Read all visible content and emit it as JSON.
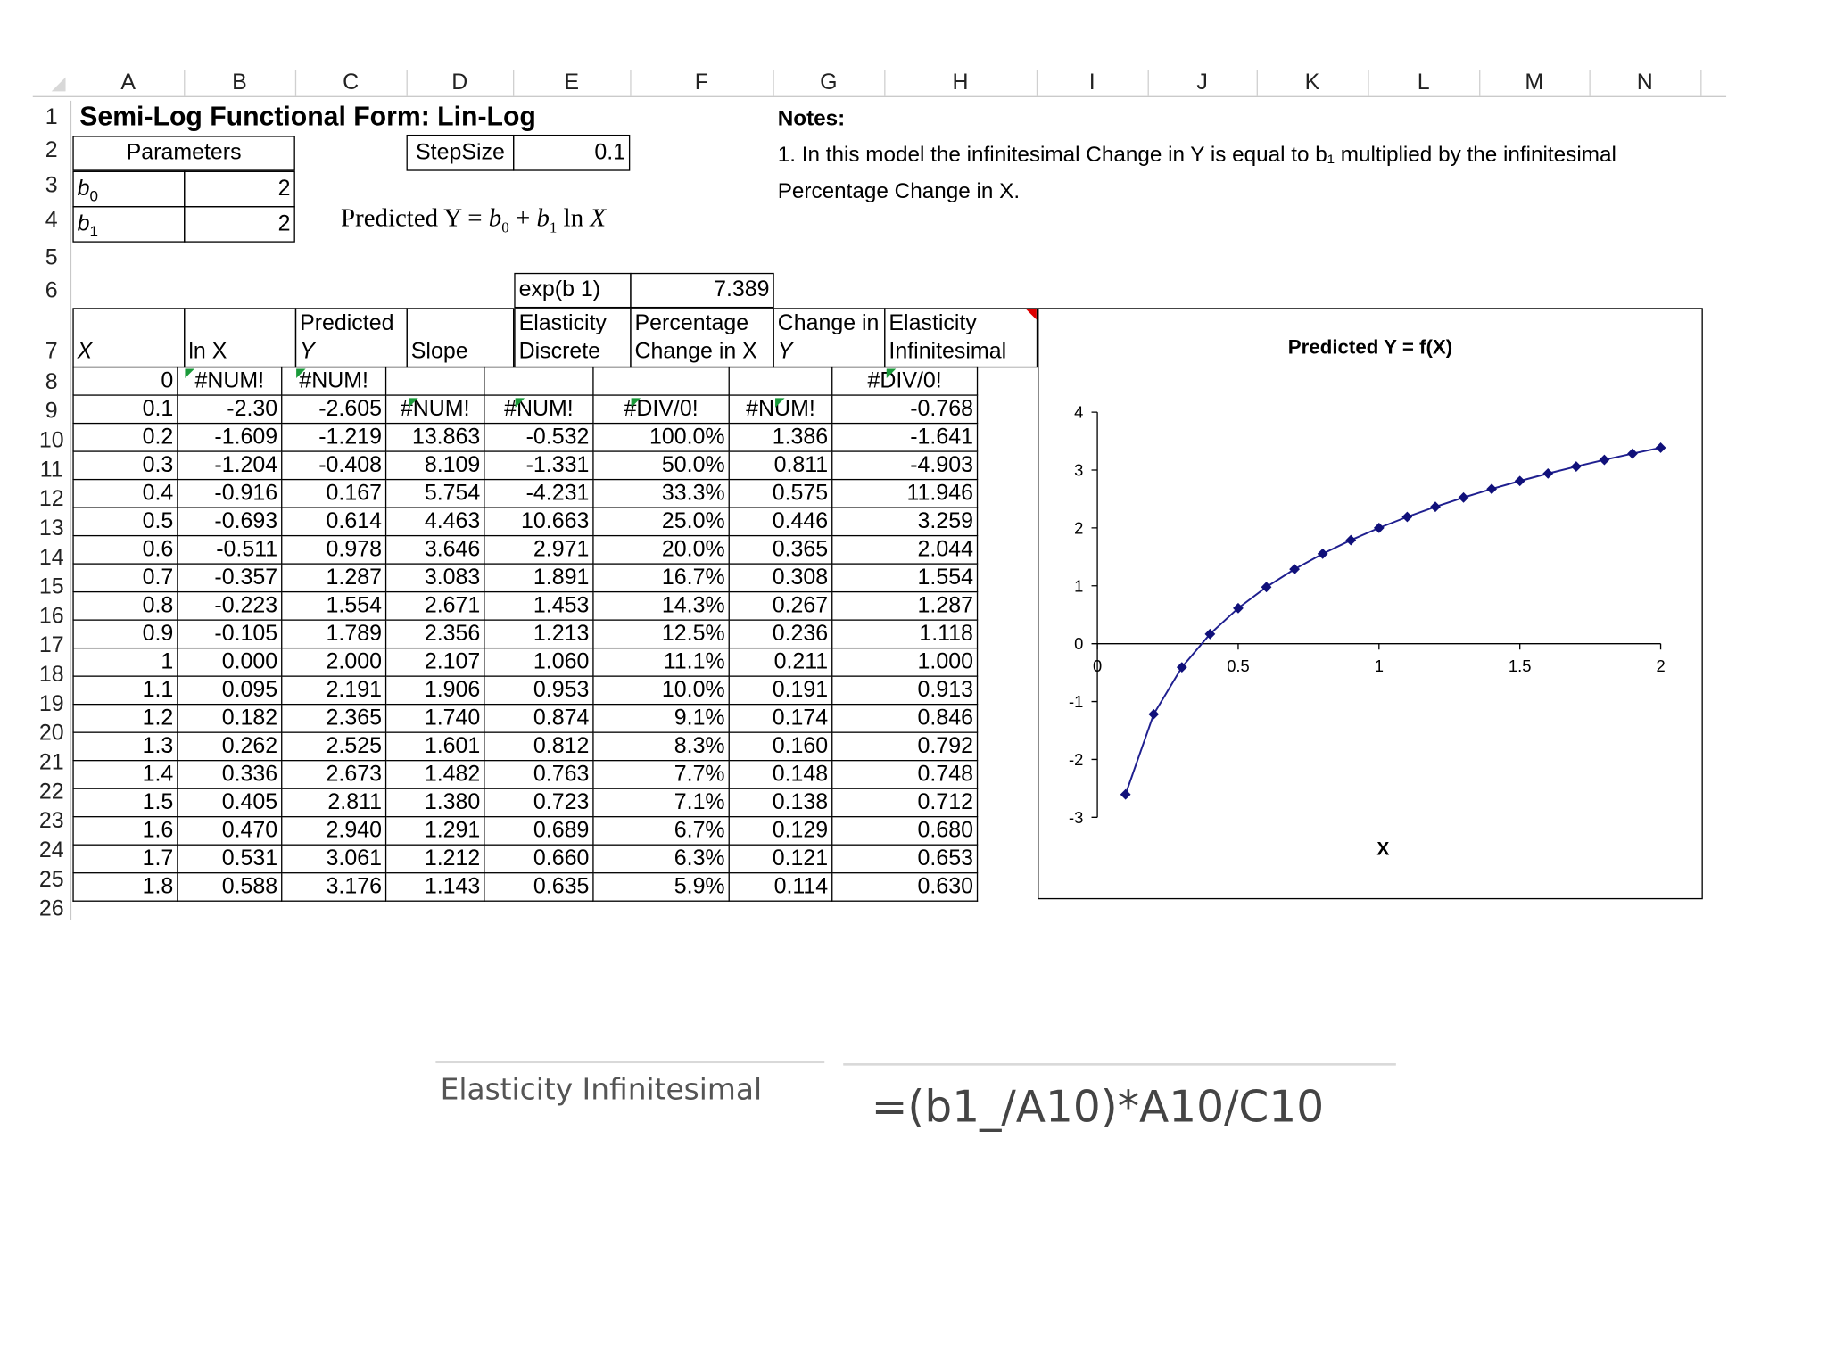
{
  "columns": [
    "A",
    "B",
    "C",
    "D",
    "E",
    "F",
    "G",
    "H",
    "I",
    "J",
    "K",
    "L",
    "M",
    "N"
  ],
  "rows": [
    "1",
    "2",
    "3",
    "4",
    "5",
    "6",
    "7",
    "8",
    "9",
    "10",
    "11",
    "12",
    "13",
    "14",
    "15",
    "16",
    "17",
    "18",
    "19",
    "20",
    "21",
    "22",
    "23",
    "24",
    "25",
    "26"
  ],
  "title": "Semi-Log Functional Form: Lin-Log",
  "parameters": {
    "label": "Parameters",
    "b0_label": "b",
    "b0_sub": "0",
    "b0_value": "2",
    "b1_label": "b",
    "b1_sub": "1",
    "b1_value": "2"
  },
  "stepsize": {
    "label": "StepSize",
    "value": "0.1"
  },
  "equation": {
    "prefix": "Predicted Y = ",
    "rest": "b0 + b1 ln X"
  },
  "exp_b1": {
    "label": "exp(b 1)",
    "value": "7.389"
  },
  "notes": {
    "heading": "Notes:",
    "line1": "1. In this model the infinitesimal Change in Y is equal to b₁ multiplied by the infinitesimal",
    "line2": "Percentage Change in X."
  },
  "headers": {
    "x": "X",
    "lnx": "ln X",
    "pred_top": "Predicted",
    "pred_bot": "Y",
    "slope": "Slope",
    "elastd_top": "Elasticity",
    "elastd_bot": "Discrete",
    "pct_top": "Percentage",
    "pct_bot": "Change in X",
    "chg_top": "Change in",
    "chg_bot": "Y",
    "elasti_top": "Elasticity",
    "elasti_bot": "Infinitesimal"
  },
  "table_rows": [
    [
      "0",
      "#NUM!",
      "#NUM!",
      "",
      "",
      "",
      "",
      "#DIV/0!"
    ],
    [
      "0.1",
      "-2.30",
      "-2.605",
      "#NUM!",
      "#NUM!",
      "#DIV/0!",
      "#NUM!",
      "-0.768"
    ],
    [
      "0.2",
      "-1.609",
      "-1.219",
      "13.863",
      "-0.532",
      "100.0%",
      "1.386",
      "-1.641"
    ],
    [
      "0.3",
      "-1.204",
      "-0.408",
      "8.109",
      "-1.331",
      "50.0%",
      "0.811",
      "-4.903"
    ],
    [
      "0.4",
      "-0.916",
      "0.167",
      "5.754",
      "-4.231",
      "33.3%",
      "0.575",
      "11.946"
    ],
    [
      "0.5",
      "-0.693",
      "0.614",
      "4.463",
      "10.663",
      "25.0%",
      "0.446",
      "3.259"
    ],
    [
      "0.6",
      "-0.511",
      "0.978",
      "3.646",
      "2.971",
      "20.0%",
      "0.365",
      "2.044"
    ],
    [
      "0.7",
      "-0.357",
      "1.287",
      "3.083",
      "1.891",
      "16.7%",
      "0.308",
      "1.554"
    ],
    [
      "0.8",
      "-0.223",
      "1.554",
      "2.671",
      "1.453",
      "14.3%",
      "0.267",
      "1.287"
    ],
    [
      "0.9",
      "-0.105",
      "1.789",
      "2.356",
      "1.213",
      "12.5%",
      "0.236",
      "1.118"
    ],
    [
      "1",
      "0.000",
      "2.000",
      "2.107",
      "1.060",
      "11.1%",
      "0.211",
      "1.000"
    ],
    [
      "1.1",
      "0.095",
      "2.191",
      "1.906",
      "0.953",
      "10.0%",
      "0.191",
      "0.913"
    ],
    [
      "1.2",
      "0.182",
      "2.365",
      "1.740",
      "0.874",
      "9.1%",
      "0.174",
      "0.846"
    ],
    [
      "1.3",
      "0.262",
      "2.525",
      "1.601",
      "0.812",
      "8.3%",
      "0.160",
      "0.792"
    ],
    [
      "1.4",
      "0.336",
      "2.673",
      "1.482",
      "0.763",
      "7.7%",
      "0.148",
      "0.748"
    ],
    [
      "1.5",
      "0.405",
      "2.811",
      "1.380",
      "0.723",
      "7.1%",
      "0.138",
      "0.712"
    ],
    [
      "1.6",
      "0.470",
      "2.940",
      "1.291",
      "0.689",
      "6.7%",
      "0.129",
      "0.680"
    ],
    [
      "1.7",
      "0.531",
      "3.061",
      "1.212",
      "0.660",
      "6.3%",
      "0.121",
      "0.653"
    ],
    [
      "1.8",
      "0.588",
      "3.176",
      "1.143",
      "0.635",
      "5.9%",
      "0.114",
      "0.630"
    ]
  ],
  "chart_data": {
    "type": "line",
    "title": "Predicted Y = f(X)",
    "xlabel": "X",
    "ylabel": "",
    "xlim": [
      0,
      2
    ],
    "ylim": [
      -3,
      4
    ],
    "xticks": [
      "0",
      "0.5",
      "1",
      "1.5",
      "2"
    ],
    "yticks": [
      "-3",
      "-2",
      "-1",
      "0",
      "1",
      "2",
      "3",
      "4"
    ],
    "color": "#1f1f8f",
    "series": [
      {
        "x": [
          0.1,
          0.2,
          0.3,
          0.4,
          0.5,
          0.6,
          0.7,
          0.8,
          0.9,
          1.0,
          1.1,
          1.2,
          1.3,
          1.4,
          1.5,
          1.6,
          1.7,
          1.8,
          1.9,
          2.0
        ],
        "values": [
          -2.605,
          -1.219,
          -0.408,
          0.167,
          0.614,
          0.978,
          1.287,
          1.554,
          1.789,
          2.0,
          2.191,
          2.365,
          2.525,
          2.673,
          2.811,
          2.94,
          3.061,
          3.176,
          3.284,
          3.386
        ]
      }
    ]
  },
  "formula": {
    "label": "Elasticity Infinitesimal",
    "value": "=(b1_/A10)*A10/C10"
  }
}
